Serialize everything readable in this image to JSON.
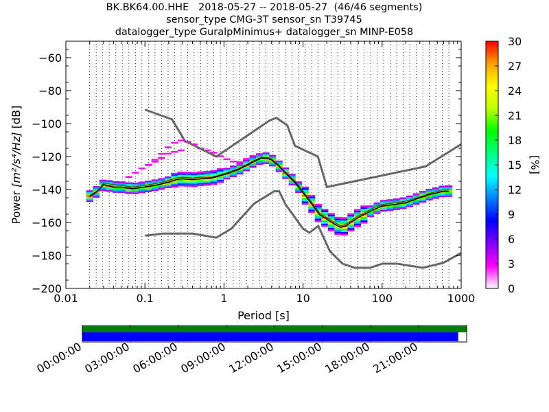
{
  "title": {
    "line1": "BK.BK64.00.HHE   2018-05-27 -- 2018-05-27  (46/46 segments)",
    "line2": "sensor_type CMG-3T sensor_sn T39745",
    "line3": "datalogger_type GuralpMinimus+ datalogger_sn MINP-E058"
  },
  "chart_data": {
    "type": "heatmap",
    "xlabel": "Period [s]",
    "ylabel_prefix": "Power ",
    "ylabel_math": "[m²/s⁴/Hz]",
    "ylabel_suffix": " [dB]",
    "xscale": "log",
    "xlim": [
      0.01,
      1000
    ],
    "ylim": [
      -200,
      -50
    ],
    "xticks": [
      0.01,
      0.1,
      1,
      10,
      100,
      1000
    ],
    "xtick_labels": [
      "0.01",
      "0.1",
      "1",
      "10",
      "100",
      "1000"
    ],
    "yticks": [
      -200,
      -180,
      -160,
      -140,
      -120,
      -100,
      -80,
      -60
    ],
    "ytick_labels": [
      "−200",
      "−180",
      "−160",
      "−140",
      "−120",
      "−100",
      "−80",
      "−60"
    ],
    "grid": "dotted vertical lines at period bins",
    "colorbar": {
      "label": "[%]",
      "range": [
        0,
        30
      ],
      "ticks": [
        0,
        3,
        6,
        9,
        12,
        15,
        18,
        21,
        24,
        27,
        30
      ],
      "colormap": [
        "#ffffff",
        "#ff00ff",
        "#8000ff",
        "#0000ff",
        "#0080ff",
        "#00ffff",
        "#00ff80",
        "#00ff00",
        "#c0ff00",
        "#ffff00",
        "#ffa000",
        "#ff0000"
      ]
    },
    "noise_models": {
      "new_high_noise_model": {
        "period": [
          0.1,
          0.22,
          0.32,
          0.8,
          3.8,
          4.6,
          6.3,
          7.9,
          15.4,
          20,
          354.8,
          1000
        ],
        "db": [
          -91.5,
          -97.4,
          -110.5,
          -120.0,
          -98.0,
          -96.5,
          -101.0,
          -113.5,
          -120.0,
          -138.5,
          -126.0,
          -112.5
        ]
      },
      "new_low_noise_model": {
        "period": [
          0.1,
          0.17,
          0.4,
          0.8,
          1.24,
          2.4,
          4.3,
          5.0,
          6.0,
          10.0,
          12.0,
          15.6,
          21.9,
          31.6,
          45.0,
          70.0,
          101.0,
          154.0,
          328.0,
          600.0,
          1000.0
        ],
        "db": [
          -168.0,
          -166.7,
          -166.7,
          -169.2,
          -163.7,
          -148.6,
          -141.1,
          -141.1,
          -149.0,
          -163.8,
          -166.2,
          -162.1,
          -177.5,
          -185.0,
          -187.5,
          -187.5,
          -185.0,
          -185.0,
          -187.5,
          -184.4,
          -178.5
        ]
      }
    },
    "psd_statistics": {
      "period": [
        0.02,
        0.025,
        0.03,
        0.04,
        0.05,
        0.07,
        0.1,
        0.15,
        0.2,
        0.25,
        0.3,
        0.4,
        0.5,
        0.7,
        1.0,
        1.5,
        2.0,
        2.5,
        3.0,
        3.5,
        4.0,
        5.0,
        6.0,
        8.0,
        10.0,
        13.0,
        16.0,
        20.0,
        25.0,
        30.0,
        35.0,
        40.0,
        50.0,
        60.0,
        80.0,
        100.0,
        150.0,
        200.0,
        300.0,
        400.0,
        500.0,
        600.0,
        700.0
      ],
      "mode_db": [
        -144.0,
        -141.0,
        -137.0,
        -138.5,
        -138.5,
        -139.5,
        -138.5,
        -137.0,
        -135.5,
        -134.0,
        -133.5,
        -134.0,
        -133.5,
        -133.0,
        -131.0,
        -128.0,
        -125.0,
        -122.5,
        -121.0,
        -121.0,
        -122.0,
        -126.0,
        -130.0,
        -136.0,
        -142.0,
        -149.0,
        -155.0,
        -158.0,
        -161.0,
        -163.0,
        -162.0,
        -160.0,
        -157.0,
        -155.0,
        -152.0,
        -150.0,
        -149.0,
        -148.0,
        -145.0,
        -143.0,
        -142.0,
        -141.0,
        -141.0
      ],
      "mean_db": [
        -144.5,
        -141.5,
        -136.0,
        -137.0,
        -137.5,
        -138.5,
        -137.5,
        -136.0,
        -134.5,
        -133.0,
        -132.5,
        -133.0,
        -132.5,
        -132.5,
        -130.5,
        -127.5,
        -124.5,
        -122.0,
        -120.5,
        -120.5,
        -121.5,
        -125.5,
        -129.5,
        -135.0,
        -141.0,
        -148.0,
        -154.0,
        -157.0,
        -160.0,
        -162.0,
        -161.0,
        -159.0,
        -156.0,
        -154.0,
        -151.0,
        -149.0,
        -148.0,
        -147.0,
        -144.5,
        -142.5,
        -141.0,
        -140.0,
        -140.0
      ]
    },
    "outlier_arcs": {
      "upper": {
        "period": [
          0.1,
          0.15,
          0.2,
          0.25,
          0.3,
          0.4,
          0.5,
          0.7,
          1.0,
          1.5,
          2.0,
          2.5
        ],
        "db": [
          -127,
          -120,
          -114,
          -111,
          -110,
          -112,
          -115,
          -117,
          -121,
          -124,
          -121,
          -119
        ]
      },
      "mid": {
        "period": [
          0.06,
          0.1,
          0.15,
          0.2,
          0.3
        ],
        "db": [
          -133,
          -126,
          -122,
          -118,
          -116
        ]
      }
    },
    "time_coverage": {
      "tick_labels": [
        "00:00:00",
        "03:00:00",
        "06:00:00",
        "09:00:00",
        "12:00:00",
        "15:00:00",
        "18:00:00",
        "21:00:00"
      ],
      "data_fraction": 0.978,
      "colors": {
        "gaps_bar": "#008000",
        "data_bar": "#0000ff"
      }
    }
  },
  "colors": {
    "noise_model": "#666666",
    "mode_line": "#000000",
    "mean_line": "#404040"
  }
}
